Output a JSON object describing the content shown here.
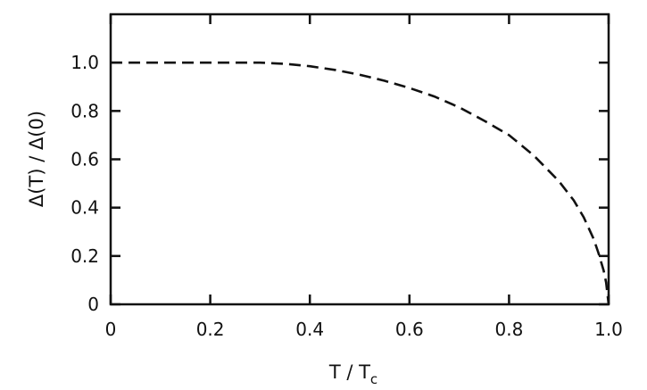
{
  "chart_data": {
    "type": "line",
    "title": "",
    "xlabel": "T / T",
    "xlabel_subscript": "c",
    "ylabel": "Δ(T) / Δ(0)",
    "xlim": [
      0,
      1.0
    ],
    "ylim": [
      0,
      1.2
    ],
    "x_ticks": [
      0,
      0.2,
      0.4,
      0.6,
      0.8,
      1.0
    ],
    "x_tick_labels": [
      "0",
      "0.2",
      "0.4",
      "0.6",
      "0.8",
      "1.0"
    ],
    "y_ticks": [
      0,
      0.2,
      0.4,
      0.6,
      0.8,
      1.0
    ],
    "y_tick_labels": [
      "0",
      "0.2",
      "0.4",
      "0.6",
      "0.8",
      "1.0"
    ],
    "grid": false,
    "line_style": "dashed",
    "series": [
      {
        "x": [
          0.0,
          0.1,
          0.2,
          0.3,
          0.35,
          0.4,
          0.45,
          0.5,
          0.55,
          0.6,
          0.65,
          0.7,
          0.75,
          0.8,
          0.85,
          0.9,
          0.93,
          0.95,
          0.97,
          0.98,
          0.99,
          0.995,
          1.0
        ],
        "y": [
          1.0,
          1.0,
          1.0,
          1.0,
          0.995,
          0.985,
          0.97,
          0.95,
          0.925,
          0.895,
          0.86,
          0.815,
          0.76,
          0.7,
          0.615,
          0.51,
          0.43,
          0.36,
          0.27,
          0.21,
          0.14,
          0.09,
          0.0
        ]
      }
    ]
  }
}
